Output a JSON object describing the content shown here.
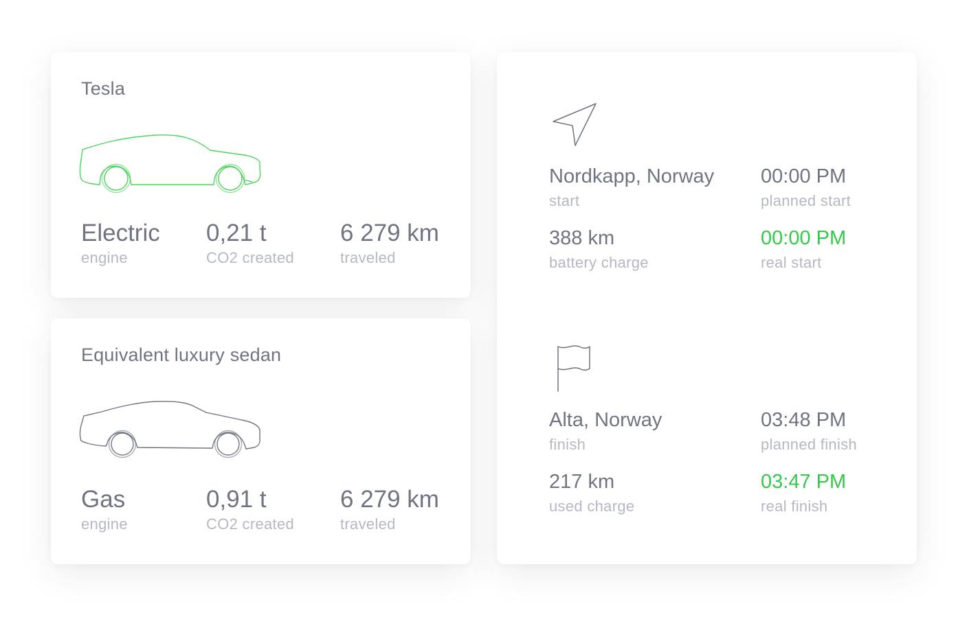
{
  "tesla_card": {
    "title": "Tesla",
    "icon": "electric-car-outline",
    "icon_color": "#4cd45a",
    "engine_value": "Electric",
    "engine_label": "engine",
    "co2_value": "0,21 t",
    "co2_label": "CO2 created",
    "distance_value": "6 279 km",
    "distance_label": "traveled"
  },
  "sedan_card": {
    "title": "Equivalent luxury sedan",
    "icon": "sedan-car-outline",
    "icon_color": "#6f7482",
    "engine_value": "Gas",
    "engine_label": "engine",
    "co2_value": "0,91 t",
    "co2_label": "CO2 created",
    "distance_value": "6 279 km",
    "distance_label": "traveled"
  },
  "trip_card": {
    "start_icon": "navigation-arrow-icon",
    "start_location": "Nordkapp, Norway",
    "start_label": "start",
    "planned_start_time": "00:00 PM",
    "planned_start_label": "planned start",
    "battery_value": "388 km",
    "battery_label": "battery charge",
    "real_start_time": "00:00 PM",
    "real_start_label": "real start",
    "finish_icon": "flag-icon",
    "finish_location": "Alta, Norway",
    "finish_label": "finish",
    "planned_finish_time": "03:48 PM",
    "planned_finish_label": "planned finish",
    "used_charge_value": "217 km",
    "used_charge_label": "used charge",
    "real_finish_time": "03:47 PM",
    "real_finish_label": "real finish"
  },
  "colors": {
    "accent_green": "#35c94a",
    "text_primary": "#6f7482",
    "text_secondary": "#b4b8c2"
  }
}
